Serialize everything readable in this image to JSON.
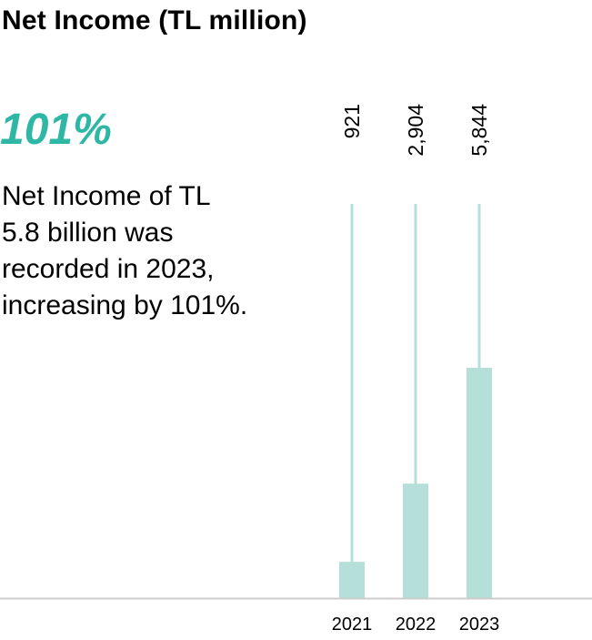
{
  "header": {
    "title": "Net Income (TL million)"
  },
  "highlight": {
    "value": "101%",
    "color": "#2fb7a6"
  },
  "description": {
    "lines": [
      "Net Income of TL",
      "5.8 billion was",
      "recorded in 2023,",
      "increasing by 101%."
    ]
  },
  "chart_data": {
    "type": "bar",
    "categories": [
      "2021",
      "2022",
      "2023"
    ],
    "values": [
      921,
      2904,
      5844
    ],
    "value_labels": [
      "921",
      "2,904",
      "5,844"
    ],
    "ylim": [
      0,
      10000
    ],
    "bar_color": "#b5e0da",
    "axis_color": "#cccccc",
    "grid": false
  }
}
